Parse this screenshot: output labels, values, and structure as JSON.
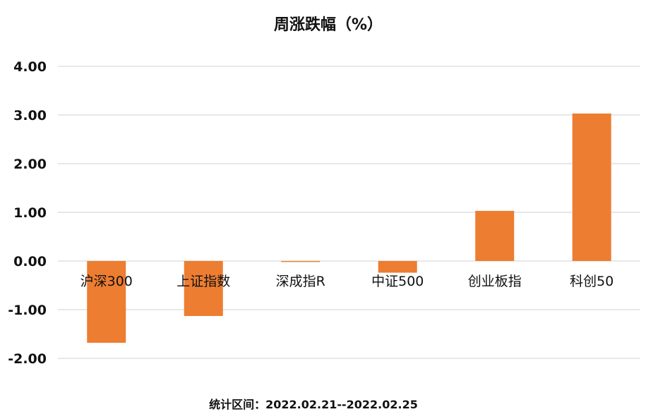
{
  "chart_data": {
    "type": "bar",
    "title": "周涨跌幅（%）",
    "categories": [
      "沪深300",
      "上证指数",
      "深成指R",
      "中证500",
      "创业板指",
      "科创50"
    ],
    "series": [
      {
        "values": [
          -1.68,
          -1.13,
          -0.02,
          -0.24,
          1.03,
          3.03
        ]
      }
    ],
    "ylim": [
      -2,
      4
    ],
    "yticks": [
      "-2.00",
      "-1.00",
      "0.00",
      "1.00",
      "2.00",
      "3.00",
      "4.00"
    ],
    "xlabel": "",
    "ylabel": "",
    "grid": true,
    "legend": "none",
    "bar_color": "#ED7D31",
    "footnote": "统计区间：2022.02.21--2022.02.25"
  }
}
